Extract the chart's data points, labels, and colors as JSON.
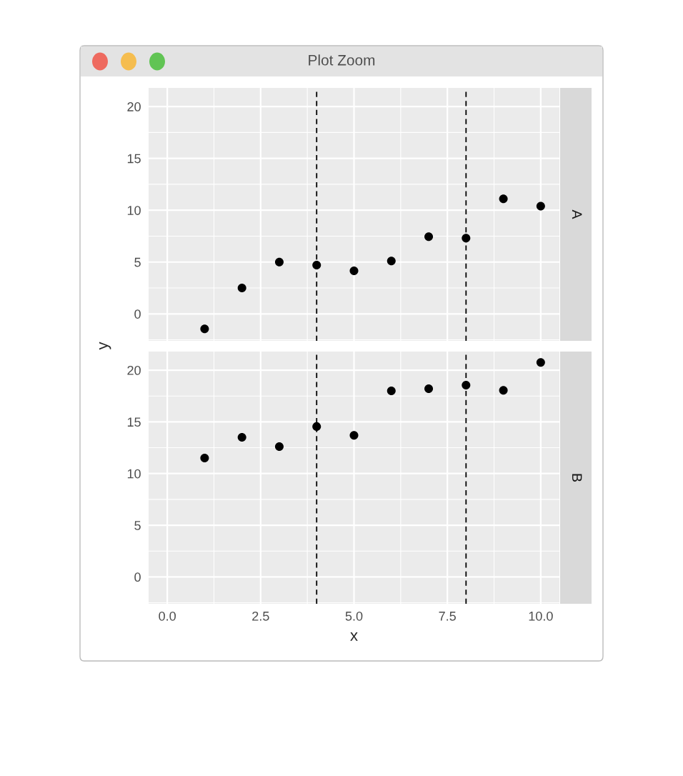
{
  "chart_data": [
    {
      "type": "scatter",
      "ylabel": "y",
      "annotations": [
        "Plot Zoom",
        "A"
      ],
      "x": [
        1,
        2,
        3,
        4,
        5,
        6,
        7,
        8,
        9,
        10
      ],
      "series": [
        {
          "color": "#000000",
          "values": [
            -1.45,
            2.5,
            5.0,
            4.7,
            4.15,
            5.1,
            7.45,
            7.3,
            11.1,
            10.4
          ]
        }
      ],
      "xlim": [
        -0.5,
        10.5
      ],
      "xticks": [
        0,
        2.5,
        5,
        7.5,
        10
      ],
      "ylim": [
        -2.6,
        21.8
      ],
      "yticks": [
        0,
        5,
        10,
        15,
        20
      ],
      "ref_lines": [
        {
          "axis": "x",
          "value": 4,
          "line_style": "dashed",
          "color": "#000000"
        },
        {
          "axis": "x",
          "value": 8,
          "line_style": "dashed",
          "color": "#000000"
        }
      ],
      "grid": true,
      "marker": "circle",
      "tick_labels": "y"
    },
    {
      "type": "scatter",
      "annotations": [
        "B"
      ],
      "xlabel": "x",
      "x": [
        1,
        2,
        3,
        4,
        5,
        6,
        7,
        8,
        9,
        10
      ],
      "series": [
        {
          "color": "#000000",
          "values": [
            11.5,
            13.5,
            12.6,
            14.55,
            13.7,
            18.0,
            18.2,
            18.55,
            18.05,
            20.75
          ]
        }
      ],
      "xlim": [
        -0.5,
        10.5
      ],
      "xticks": [
        {
          "value": 0,
          "label": "0.0"
        },
        {
          "value": 2.5,
          "label": "2.5"
        },
        {
          "value": 5,
          "label": "5.0"
        },
        {
          "value": 7.5,
          "label": "7.5"
        },
        {
          "value": 10,
          "label": "10.0"
        }
      ],
      "ylim": [
        -2.6,
        21.8
      ],
      "yticks": [
        0,
        5,
        10,
        15,
        20
      ],
      "ref_lines": [
        {
          "axis": "x",
          "value": 4,
          "line_style": "dashed",
          "color": "#000000"
        },
        {
          "axis": "x",
          "value": 8,
          "line_style": "dashed",
          "color": "#000000"
        }
      ],
      "grid": true,
      "marker": "circle"
    }
  ]
}
